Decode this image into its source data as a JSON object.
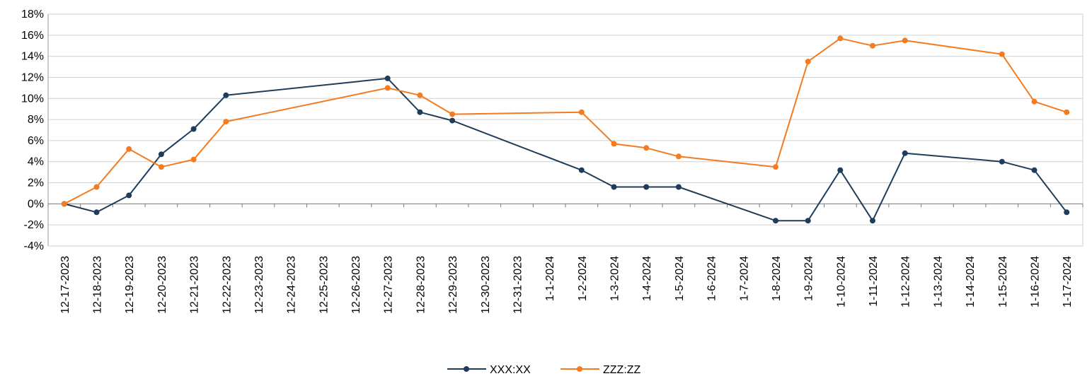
{
  "chart_data": {
    "type": "line",
    "title": "",
    "xlabel": "",
    "ylabel": "",
    "categories": [
      "12-17-2023",
      "12-18-2023",
      "12-19-2023",
      "12-20-2023",
      "12-21-2023",
      "12-22-2023",
      "12-23-2023",
      "12-24-2023",
      "12-25-2023",
      "12-26-2023",
      "12-27-2023",
      "12-28-2023",
      "12-29-2023",
      "12-30-2023",
      "12-31-2023",
      "1-1-2024",
      "1-2-2024",
      "1-3-2024",
      "1-4-2024",
      "1-5-2024",
      "1-6-2024",
      "1-7-2024",
      "1-8-2024",
      "1-9-2024",
      "1-10-2024",
      "1-11-2024",
      "1-12-2024",
      "1-13-2024",
      "1-14-2024",
      "1-15-2024",
      "1-16-2024",
      "1-17-2024"
    ],
    "y_ticks": [
      "-4%",
      "-2%",
      "0%",
      "2%",
      "4%",
      "6%",
      "8%",
      "10%",
      "12%",
      "14%",
      "16%",
      "18%"
    ],
    "ylim": [
      -4,
      18
    ],
    "grid": true,
    "legend_position": "bottom",
    "series": [
      {
        "name": "XXX:XX",
        "color": "#1f3d5a",
        "values": [
          0,
          -0.8,
          0.8,
          4.7,
          7.1,
          10.3,
          null,
          null,
          null,
          null,
          11.9,
          8.7,
          7.9,
          null,
          null,
          null,
          3.2,
          1.6,
          1.6,
          1.6,
          null,
          null,
          -1.6,
          -1.6,
          3.2,
          -1.6,
          4.8,
          null,
          null,
          4.0,
          3.2,
          -0.8
        ]
      },
      {
        "name": "ZZZ:ZZ",
        "color": "#f47b20",
        "values": [
          0,
          1.6,
          5.2,
          3.5,
          4.2,
          7.8,
          null,
          null,
          null,
          null,
          11.0,
          10.3,
          8.5,
          null,
          null,
          null,
          8.7,
          5.7,
          5.3,
          4.5,
          null,
          null,
          3.5,
          13.5,
          15.7,
          15.0,
          15.5,
          null,
          null,
          14.2,
          9.7,
          8.7
        ]
      }
    ]
  }
}
